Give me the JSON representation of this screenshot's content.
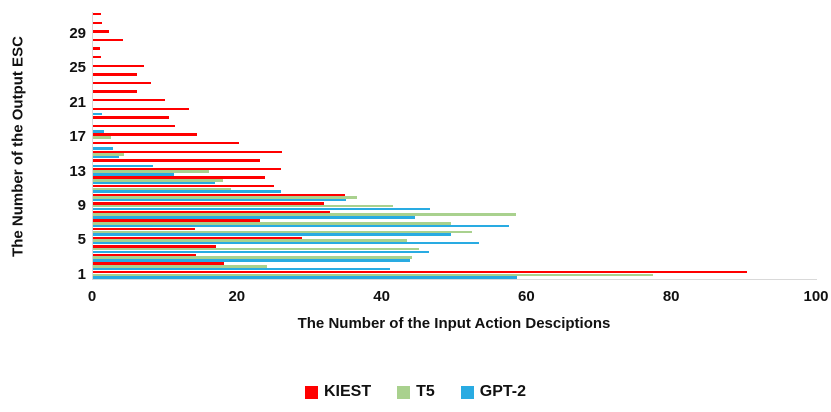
{
  "chart_data": {
    "type": "bar",
    "orientation": "horizontal-grouped",
    "title": "",
    "xlabel": "The Number of the Input Action Desciptions",
    "ylabel": "The Number of the Output ESC",
    "xlim": [
      0,
      100
    ],
    "x_ticks": [
      "0",
      "20",
      "40",
      "60",
      "80",
      "100"
    ],
    "x_tick_values": [
      0,
      20,
      40,
      60,
      80,
      100
    ],
    "y_tick_labels": [
      "1",
      "5",
      "9",
      "13",
      "17",
      "21",
      "25",
      "29"
    ],
    "y_tick_values": [
      1,
      5,
      9,
      13,
      17,
      21,
      25,
      29
    ],
    "categories": [
      1,
      2,
      3,
      4,
      5,
      6,
      7,
      8,
      9,
      10,
      11,
      12,
      13,
      14,
      15,
      16,
      17,
      18,
      19,
      20,
      21,
      22,
      23,
      24,
      25,
      26,
      27,
      28,
      29,
      30,
      31
    ],
    "grid": false,
    "legend_position": "bottom",
    "axis_line_color": "#d9d9d9",
    "series": [
      {
        "name": "KIEST",
        "color": "#FF0000",
        "values": [
          90.3,
          18.1,
          14.2,
          17.0,
          28.8,
          14.1,
          23.1,
          32.7,
          31.9,
          34.8,
          25.0,
          23.8,
          25.9,
          23.0,
          26.1,
          20.2,
          14.3,
          11.3,
          10.5,
          13.2,
          10.0,
          6.1,
          8.0,
          6.1,
          7.1,
          1.1,
          1.0,
          4.1,
          2.2,
          1.2,
          1.1
        ]
      },
      {
        "name": "T5",
        "color": "#A9D18E",
        "values": [
          77.3,
          24.0,
          44.0,
          45.0,
          43.4,
          52.4,
          49.4,
          58.4,
          41.5,
          36.5,
          19.0,
          17.9,
          16.0,
          0,
          4.3,
          0,
          2.5,
          0,
          0,
          0,
          0,
          0,
          0,
          0,
          0,
          0,
          0,
          0,
          0,
          0,
          0
        ]
      },
      {
        "name": "GPT-2",
        "color": "#29ABE2",
        "values": [
          58.6,
          41.0,
          43.8,
          46.4,
          53.3,
          49.5,
          57.4,
          44.5,
          46.5,
          35.0,
          26.0,
          16.9,
          11.2,
          8.3,
          3.6,
          2.7,
          0,
          1.5,
          0,
          1.2,
          0,
          0,
          0,
          0,
          0,
          0,
          0,
          0,
          0,
          0,
          0
        ]
      }
    ]
  }
}
